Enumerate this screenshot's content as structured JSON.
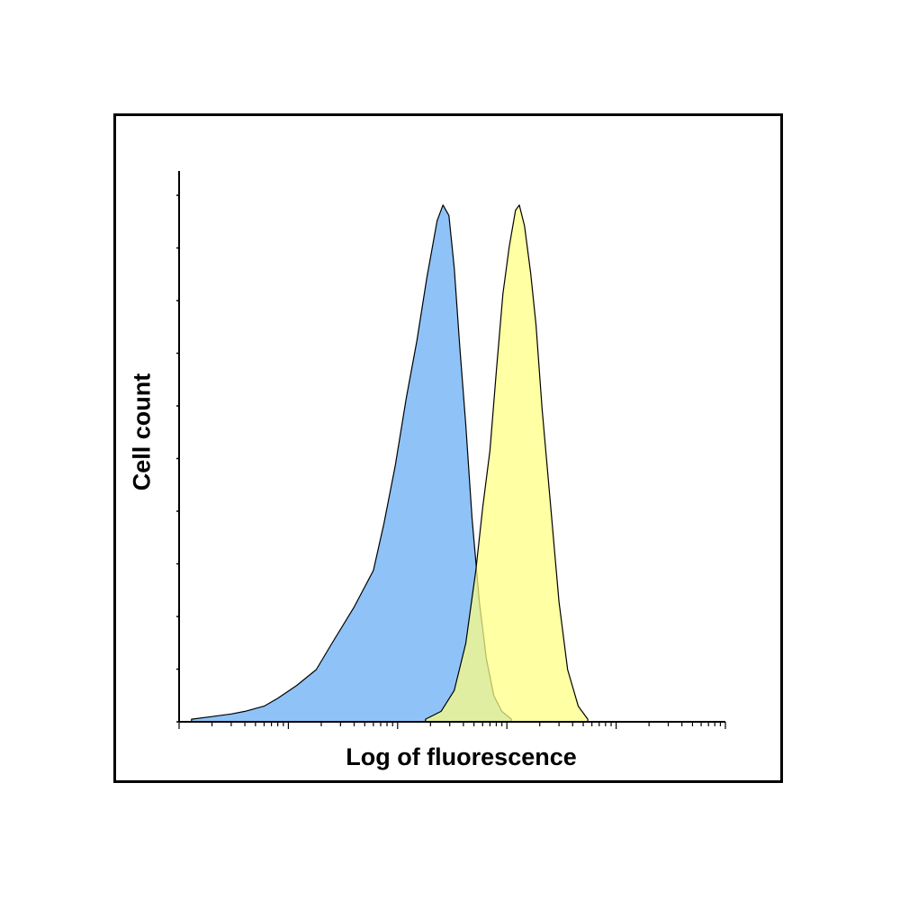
{
  "chart_data": {
    "type": "area",
    "xlabel": "Log of fluorescence",
    "ylabel": "Cell count",
    "x_scale": "log",
    "xlim": [
      1,
      100000
    ],
    "ylim": [
      0,
      1
    ],
    "grid": false,
    "legend": "none",
    "series": [
      {
        "color": "#8fc3f7",
        "points": [
          [
            1.3,
            0.005
          ],
          [
            2,
            0.01
          ],
          [
            3,
            0.015
          ],
          [
            4,
            0.02
          ],
          [
            6,
            0.03
          ],
          [
            8,
            0.045
          ],
          [
            12,
            0.07
          ],
          [
            18,
            0.1
          ],
          [
            25,
            0.15
          ],
          [
            40,
            0.22
          ],
          [
            60,
            0.29
          ],
          [
            75,
            0.38
          ],
          [
            95,
            0.49
          ],
          [
            120,
            0.62
          ],
          [
            150,
            0.73
          ],
          [
            185,
            0.85
          ],
          [
            230,
            0.96
          ],
          [
            260,
            0.99
          ],
          [
            295,
            0.97
          ],
          [
            330,
            0.87
          ],
          [
            370,
            0.72
          ],
          [
            420,
            0.57
          ],
          [
            480,
            0.39
          ],
          [
            560,
            0.23
          ],
          [
            650,
            0.12
          ],
          [
            760,
            0.05
          ],
          [
            900,
            0.02
          ],
          [
            1100,
            0.005
          ]
        ]
      },
      {
        "color": "#ffff80",
        "points": [
          [
            180,
            0.005
          ],
          [
            250,
            0.02
          ],
          [
            330,
            0.06
          ],
          [
            420,
            0.15
          ],
          [
            520,
            0.29
          ],
          [
            600,
            0.41
          ],
          [
            700,
            0.52
          ],
          [
            800,
            0.67
          ],
          [
            920,
            0.82
          ],
          [
            1050,
            0.91
          ],
          [
            1200,
            0.98
          ],
          [
            1300,
            0.99
          ],
          [
            1450,
            0.95
          ],
          [
            1650,
            0.86
          ],
          [
            1850,
            0.76
          ],
          [
            2100,
            0.6
          ],
          [
            2500,
            0.42
          ],
          [
            3000,
            0.23
          ],
          [
            3600,
            0.1
          ],
          [
            4500,
            0.03
          ],
          [
            5500,
            0.005
          ]
        ]
      }
    ]
  }
}
